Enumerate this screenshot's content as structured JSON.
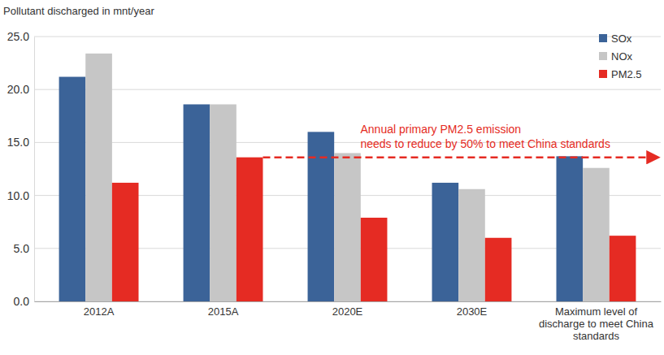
{
  "chart_data": {
    "type": "bar",
    "y_label": "Pollutant discharged in mnt/year",
    "categories": [
      "2012A",
      "2015A",
      "2020E",
      "2030E",
      "Maximum level of\ndischarge to meet China\nstandards"
    ],
    "series": [
      {
        "name": "SOx",
        "color": "#3b6398",
        "values": [
          21.2,
          18.6,
          16.0,
          11.2,
          13.7
        ]
      },
      {
        "name": "NOx",
        "color": "#c6c6c6",
        "values": [
          23.4,
          18.6,
          14.0,
          10.6,
          12.6
        ]
      },
      {
        "name": "PM2.5",
        "color": "#e52b23",
        "values": [
          11.2,
          13.6,
          7.9,
          6.0,
          6.2
        ]
      }
    ],
    "ylim": [
      0,
      25
    ],
    "yticks": [
      {
        "value": 0,
        "label": "0.0"
      },
      {
        "value": 5,
        "label": "5.0"
      },
      {
        "value": 10,
        "label": "10.0"
      },
      {
        "value": 15,
        "label": "15.0"
      },
      {
        "value": 20,
        "label": "20.0"
      },
      {
        "value": 25,
        "label": "25.0"
      }
    ],
    "grid": true,
    "legend": "top-right",
    "annotations": [
      "Annual primary PM2.5 emission",
      "needs to reduce by 50% to meet China standards"
    ]
  }
}
